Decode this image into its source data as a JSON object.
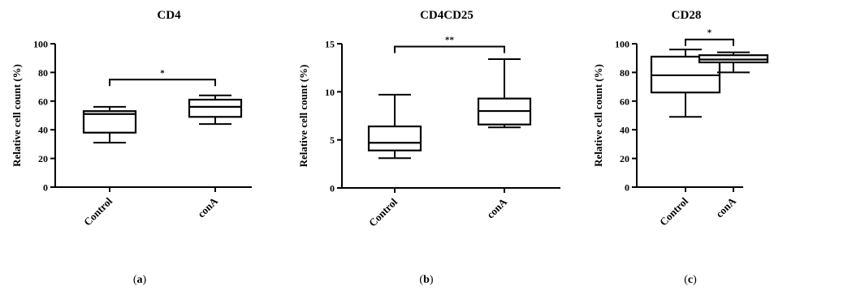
{
  "chart_data": [
    {
      "type": "box",
      "title": "CD4",
      "panel_label": "(a)",
      "ylabel": "Relative cell count (%)",
      "ylim": [
        0,
        100
      ],
      "yticks": [
        "0",
        "20",
        "40",
        "60",
        "80",
        "100"
      ],
      "categories": [
        "Control",
        "conA"
      ],
      "boxes": [
        {
          "min": 31,
          "q1": 38,
          "median": 51,
          "q3": 53,
          "max": 56
        },
        {
          "min": 44,
          "q1": 49,
          "median": 56,
          "q3": 61,
          "max": 64
        }
      ],
      "significance": {
        "label": "*",
        "y": 75
      }
    },
    {
      "type": "box",
      "title": "CD4CD25",
      "panel_label": "(b)",
      "ylabel": "Relative cell count (%)",
      "ylim": [
        0,
        15
      ],
      "yticks": [
        "0",
        "5",
        "10",
        "15"
      ],
      "categories": [
        "Control",
        "conA"
      ],
      "boxes": [
        {
          "min": 3.1,
          "q1": 3.9,
          "median": 4.7,
          "q3": 6.4,
          "max": 9.7
        },
        {
          "min": 6.3,
          "q1": 6.6,
          "median": 8.0,
          "q3": 9.3,
          "max": 13.4
        }
      ],
      "significance": {
        "label": "**",
        "y": 14.7
      }
    },
    {
      "type": "box",
      "title": "CD28",
      "panel_label": "(c)",
      "ylabel": "Relative cell count (%)",
      "ylim": [
        0,
        100
      ],
      "yticks": [
        "0",
        "20",
        "40",
        "60",
        "80",
        "100"
      ],
      "categories": [
        "Control",
        "conA"
      ],
      "boxes": [
        {
          "min": 49,
          "q1": 66,
          "median": 78,
          "q3": 91,
          "max": 96
        },
        {
          "min": 80,
          "q1": 87,
          "median": 89,
          "q3": 92,
          "max": 94
        }
      ],
      "significance": {
        "label": "*",
        "y": 103
      }
    }
  ]
}
